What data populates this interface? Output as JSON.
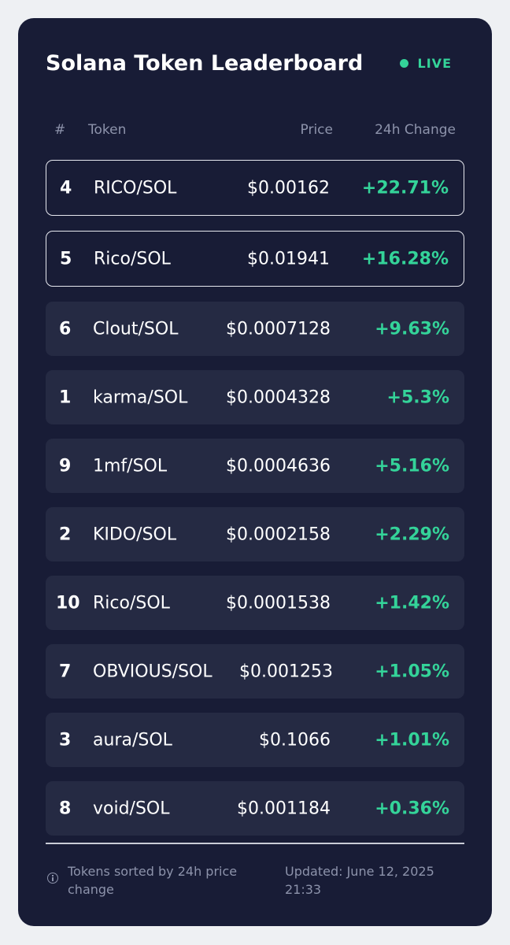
{
  "header": {
    "title": "Solana Token Leaderboard",
    "live_label": "LIVE"
  },
  "columns": {
    "rank": "#",
    "token": "Token",
    "price": "Price",
    "change": "24h Change"
  },
  "rows": [
    {
      "rank": "4",
      "token": "RICO/SOL",
      "price": "$0.00162",
      "change": "+22.71%",
      "highlighted": true
    },
    {
      "rank": "5",
      "token": "Rico/SOL",
      "price": "$0.01941",
      "change": "+16.28%",
      "highlighted": true
    },
    {
      "rank": "6",
      "token": "Clout/SOL",
      "price": "$0.0007128",
      "change": "+9.63%",
      "highlighted": false
    },
    {
      "rank": "1",
      "token": "karma/SOL",
      "price": "$0.0004328",
      "change": "+5.3%",
      "highlighted": false
    },
    {
      "rank": "9",
      "token": "1mf/SOL",
      "price": "$0.0004636",
      "change": "+5.16%",
      "highlighted": false
    },
    {
      "rank": "2",
      "token": "KIDO/SOL",
      "price": "$0.0002158",
      "change": "+2.29%",
      "highlighted": false
    },
    {
      "rank": "10",
      "token": "Rico/SOL",
      "price": "$0.0001538",
      "change": "+1.42%",
      "highlighted": false
    },
    {
      "rank": "7",
      "token": "OBVIOUS/SOL",
      "price": "$0.001253",
      "change": "+1.05%",
      "highlighted": false
    },
    {
      "rank": "3",
      "token": "aura/SOL",
      "price": "$0.1066",
      "change": "+1.01%",
      "highlighted": false
    },
    {
      "rank": "8",
      "token": "void/SOL",
      "price": "$0.001184",
      "change": "+0.36%",
      "highlighted": false
    }
  ],
  "footer": {
    "note": "Tokens sorted by 24h price change",
    "updated": "Updated: June 12, 2025 21:33"
  },
  "colors": {
    "background": "#eef0f3",
    "card": "#181c36",
    "row": "#252a43",
    "positive": "#34d399",
    "muted": "#8d93ab"
  },
  "icons": {
    "live": "status-dot-icon",
    "footer": "info-icon"
  }
}
